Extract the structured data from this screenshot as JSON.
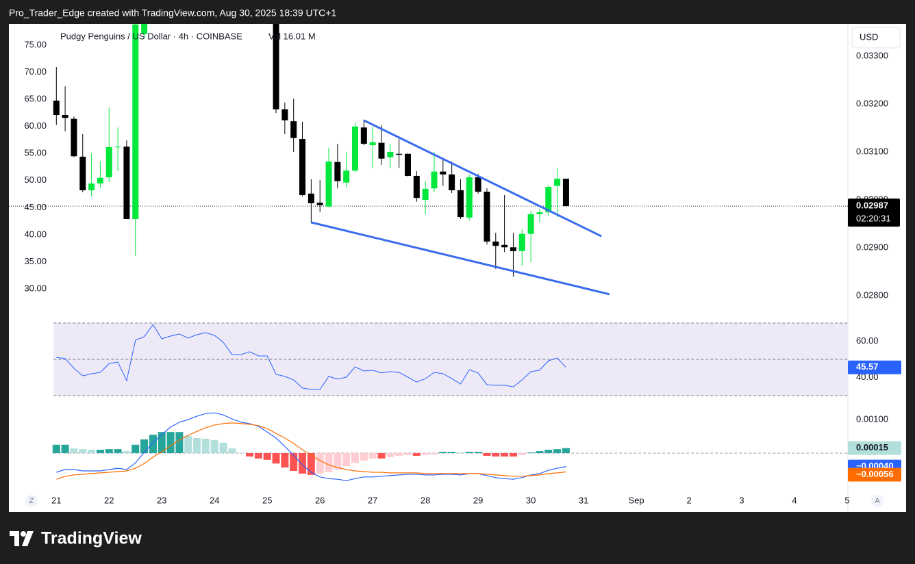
{
  "header": {
    "text": "Pro_Trader_Edge created with TradingView.com, Aug 30, 2025 18:39 UTC+1"
  },
  "logo": {
    "text": "TradingView"
  },
  "buttons": [
    "Z",
    "A"
  ],
  "chart_data": {
    "type": "candlestick",
    "title": "Pudgy Penguins / US Dollar · 4h · COINBASE",
    "volume_label": "Vol 16.01 M",
    "currency": "USD",
    "x": [
      21,
      21.1667,
      21.3333,
      21.5,
      21.6667,
      21.8333,
      22,
      22.1667,
      22.3333,
      22.5,
      22.6667,
      22.8333,
      23,
      23.1667,
      23.3333,
      23.5,
      23.6667,
      23.8333,
      24,
      24.1667,
      24.3333,
      24.5,
      24.6667,
      24.8333,
      25,
      25.1667,
      25.3333,
      25.5,
      25.6667,
      25.8333,
      26,
      26.1667,
      26.3333,
      26.5,
      26.6667,
      26.8333,
      27,
      27.1667,
      27.3333,
      27.5,
      27.6667,
      27.8333,
      28,
      28.1667,
      28.3333,
      28.5,
      28.6667,
      28.8333,
      29,
      29.1667,
      29.3333,
      29.5,
      29.6667,
      29.8333,
      30,
      30.1667,
      30.3333,
      30.5,
      30.6667
    ],
    "xlim": [
      20.1,
      36.0
    ],
    "xticks": [
      21,
      22,
      23,
      24,
      25,
      26,
      27,
      28,
      29,
      30,
      31,
      {
        "value": 32,
        "label": "Sep"
      },
      {
        "value": 33,
        "label": "2"
      },
      {
        "value": 34,
        "label": "3"
      },
      {
        "value": 35,
        "label": "4"
      },
      {
        "value": 36,
        "label": "5"
      }
    ],
    "open": [
      0.03207,
      0.03177,
      0.03169,
      0.0309,
      0.0302,
      0.03034,
      0.03047,
      0.0311,
      0.03111,
      0.0296,
      0.03346,
      null,
      null,
      null,
      null,
      null,
      null,
      null,
      null,
      null,
      null,
      null,
      null,
      null,
      null,
      0.03389,
      0.03189,
      0.03164,
      0.03127,
      0.03013,
      0.02994,
      0.02986,
      0.03079,
      0.03036,
      0.03061,
      0.03151,
      0.03114,
      0.03119,
      0.03089,
      0.03096,
      0.03096,
      0.0305,
      0.03,
      0.03024,
      0.03059,
      0.03053,
      0.0302,
      0.02963,
      0.03047,
      0.03017,
      0.02913,
      0.02906,
      0.02901,
      0.02893,
      0.02929,
      0.0297,
      0.02974,
      0.03029,
      0.03044
    ],
    "high": [
      0.03277,
      0.03237,
      0.03174,
      0.03137,
      0.03097,
      0.03081,
      0.03193,
      0.03151,
      0.03124,
      0.03389,
      0.03403,
      null,
      null,
      null,
      null,
      null,
      null,
      null,
      null,
      null,
      null,
      null,
      null,
      null,
      null,
      0.03403,
      0.03203,
      0.03211,
      0.03163,
      0.03043,
      0.03041,
      0.03109,
      0.03117,
      0.031,
      0.0316,
      0.03167,
      0.03153,
      0.03156,
      0.03117,
      0.03127,
      0.03097,
      0.0306,
      0.03039,
      0.031,
      0.03084,
      0.0308,
      0.03043,
      0.03053,
      0.03054,
      0.03024,
      0.02931,
      0.0301,
      0.02931,
      0.02939,
      0.02977,
      0.02981,
      0.03031,
      0.03067,
      0.03044
    ],
    "low": [
      0.03156,
      0.03143,
      0.03089,
      0.03016,
      0.03007,
      0.03024,
      0.03037,
      0.0306,
      0.0296,
      0.02883,
      0.03339,
      null,
      null,
      null,
      null,
      null,
      null,
      null,
      null,
      null,
      null,
      null,
      null,
      null,
      null,
      0.03181,
      0.03137,
      0.031,
      0.03007,
      0.02953,
      0.02974,
      0.02984,
      0.03024,
      0.03026,
      0.03057,
      0.03114,
      0.03066,
      0.03073,
      0.03067,
      0.03067,
      0.03049,
      0.02996,
      0.0297,
      0.03017,
      0.03029,
      0.03014,
      0.0296,
      0.02957,
      0.03013,
      0.02907,
      0.02856,
      0.02891,
      0.0284,
      0.02863,
      0.0287,
      0.02953,
      0.02967,
      0.02964,
      0.02986
    ],
    "close": [
      0.03177,
      0.03171,
      0.03091,
      0.0302,
      0.03034,
      0.03046,
      0.0311,
      0.03111,
      0.0296,
      0.03366,
      0.03389,
      null,
      null,
      null,
      null,
      null,
      null,
      null,
      null,
      null,
      null,
      null,
      null,
      null,
      null,
      0.03189,
      0.03166,
      0.03129,
      0.0301,
      0.02993,
      0.02989,
      0.0308,
      0.03039,
      0.03061,
      0.03153,
      0.03117,
      0.0312,
      0.03086,
      0.031,
      0.03094,
      0.0305,
      0.03004,
      0.03023,
      0.03059,
      0.03053,
      0.0302,
      0.02964,
      0.03047,
      0.03017,
      0.02913,
      0.02904,
      0.02901,
      0.02893,
      0.02929,
      0.0297,
      0.02974,
      0.03027,
      0.03044,
      0.02987
    ],
    "up_color": "#00e83c",
    "down_color": "#000000",
    "ylim": [
      0.0276,
      0.03367
    ],
    "yticks": [
      {
        "value": 0.028,
        "label": "0.02800"
      },
      {
        "value": 0.029,
        "label": "0.02900"
      },
      {
        "value": 0.03,
        "label": "0.03000"
      },
      {
        "value": 0.031,
        "label": "0.03100"
      },
      {
        "value": 0.032,
        "label": "0.03200"
      },
      {
        "value": 0.033,
        "label": "0.03300"
      }
    ],
    "last_label": "0.02987",
    "countdown": "02:20:31",
    "left_axis": {
      "ylim": [
        25.2,
        78.92
      ],
      "yticks": [
        {
          "value": 30,
          "label": "30.00"
        },
        {
          "value": 35,
          "label": "35.00"
        },
        {
          "value": 40,
          "label": "40.00"
        },
        {
          "value": 45,
          "label": "45.00"
        },
        {
          "value": 50,
          "label": "50.00"
        },
        {
          "value": 55,
          "label": "55.00"
        },
        {
          "value": 60,
          "label": "60.00"
        },
        {
          "value": 65,
          "label": "65.00"
        },
        {
          "value": 70,
          "label": "70.00"
        },
        {
          "value": 75,
          "label": "75.00"
        }
      ]
    },
    "trendlines": [
      {
        "points": [
          [
            26.83,
            0.03166
          ],
          [
            31.34,
            0.02924
          ]
        ]
      },
      {
        "points": [
          [
            25.83,
            0.02953
          ],
          [
            31.49,
            0.02803
          ]
        ]
      }
    ],
    "trendline_color": "#3a6cf0",
    "rsi": {
      "values": [
        51.1,
        50.4,
        45.1,
        40.9,
        42.1,
        42.8,
        47.7,
        48.5,
        38.3,
        60.6,
        62.5,
        69.2,
        61.3,
        62.8,
        64,
        61.7,
        63.6,
        64.7,
        63.2,
        59.4,
        52.6,
        52.6,
        54.2,
        51.9,
        51.9,
        41.7,
        40.6,
        38.7,
        34.2,
        33.4,
        33.4,
        40.6,
        39.1,
        40.2,
        45.8,
        43.6,
        44,
        42.5,
        43.2,
        42.8,
        40.2,
        37.5,
        39.4,
        42.8,
        42.1,
        39.4,
        36.4,
        44.3,
        42.5,
        36,
        35.7,
        35.7,
        34.9,
        38.7,
        43.2,
        44,
        49.2,
        50.8,
        45.57
      ],
      "color": "#2962ff",
      "band_color": "#ede9f7",
      "ylim": [
        25.5,
        74.5
      ],
      "levels": [
        70,
        50,
        30
      ],
      "yticks": [
        {
          "value": 60,
          "label": "60.00"
        },
        {
          "value": 40,
          "label": "40.00"
        }
      ],
      "last_label": "45.57"
    },
    "macd": {
      "ylim": [
        -0.00102,
        0.00147
      ],
      "yticks": [
        {
          "value": 0.001,
          "label": "0.00100"
        }
      ],
      "levels": [
        0
      ],
      "histogram": {
        "values": [
          0.00025,
          0.00025,
          0.00014,
          0.00012,
          0.0001,
          0.0001,
          0.00012,
          0.00012,
          6e-05,
          0.00025,
          0.00041,
          0.00055,
          0.00063,
          0.00063,
          0.00063,
          0.00051,
          0.00045,
          0.00043,
          0.00039,
          0.00031,
          0.00014,
          1e-05,
          -0.0001,
          -0.00016,
          -0.0002,
          -0.00031,
          -0.00043,
          -0.00053,
          -0.00061,
          -0.00065,
          -0.00061,
          -0.00057,
          -0.00049,
          -0.00039,
          -0.00029,
          -0.00022,
          -0.00016,
          -0.00016,
          -0.00012,
          -8e-05,
          -6e-05,
          -8e-05,
          -6e-05,
          -4e-05,
          4e-05,
          4e-05,
          2e-05,
          4e-05,
          4e-05,
          -8e-05,
          -0.0001,
          -0.0001,
          -0.0001,
          -6e-05,
          2e-05,
          6e-05,
          0.0001,
          0.00012,
          0.00015
        ],
        "colors": [
          "#26a69a",
          "#b2dfdb",
          "#ff5252",
          "#ffcdd2"
        ],
        "last_label": "0.00015"
      },
      "series": [
        {
          "values": [
            -0.00057,
            -0.00049,
            -0.00049,
            -0.00053,
            -0.00053,
            -0.00053,
            -0.00049,
            -0.00045,
            -0.00049,
            -0.00029,
            2e-05,
            0.00031,
            0.00055,
            0.00078,
            0.00092,
            0.001,
            0.0011,
            0.00118,
            0.0012,
            0.00114,
            0.00102,
            0.00092,
            0.00088,
            0.0008,
            0.00063,
            0.00045,
            0.0002,
            -6e-05,
            -0.00035,
            -0.00057,
            -0.00071,
            -0.00076,
            -0.00078,
            -0.00082,
            -0.00076,
            -0.00071,
            -0.00071,
            -0.00069,
            -0.00067,
            -0.00065,
            -0.00063,
            -0.00063,
            -0.00065,
            -0.00065,
            -0.00063,
            -0.00063,
            -0.00065,
            -0.00061,
            -0.00061,
            -0.00067,
            -0.00073,
            -0.00076,
            -0.00078,
            -0.00073,
            -0.00065,
            -0.00061,
            -0.00051,
            -0.00045,
            -0.0004
          ],
          "color": "#2962ff",
          "last_label": "−0.00040"
        },
        {
          "values": [
            -0.00078,
            -0.00069,
            -0.00065,
            -0.00063,
            -0.00061,
            -0.00059,
            -0.00057,
            -0.00055,
            -0.00053,
            -0.00045,
            -0.00031,
            -0.00012,
            4e-05,
            0.00022,
            0.00039,
            0.00053,
            0.00065,
            0.00076,
            0.00084,
            0.00088,
            0.0009,
            0.00088,
            0.00086,
            0.00082,
            0.00073,
            0.00059,
            0.00045,
            0.00029,
            0.0001,
            -6e-05,
            -0.00022,
            -0.00035,
            -0.00043,
            -0.00049,
            -0.00053,
            -0.00055,
            -0.00057,
            -0.00057,
            -0.00059,
            -0.00059,
            -0.00059,
            -0.00059,
            -0.00061,
            -0.00061,
            -0.00061,
            -0.00061,
            -0.00061,
            -0.00061,
            -0.00061,
            -0.00063,
            -0.00065,
            -0.00067,
            -0.00069,
            -0.00069,
            -0.00067,
            -0.00065,
            -0.00061,
            -0.00059,
            -0.00056
          ],
          "color": "#ff6d00",
          "last_label": "−0.00056"
        }
      ]
    }
  }
}
